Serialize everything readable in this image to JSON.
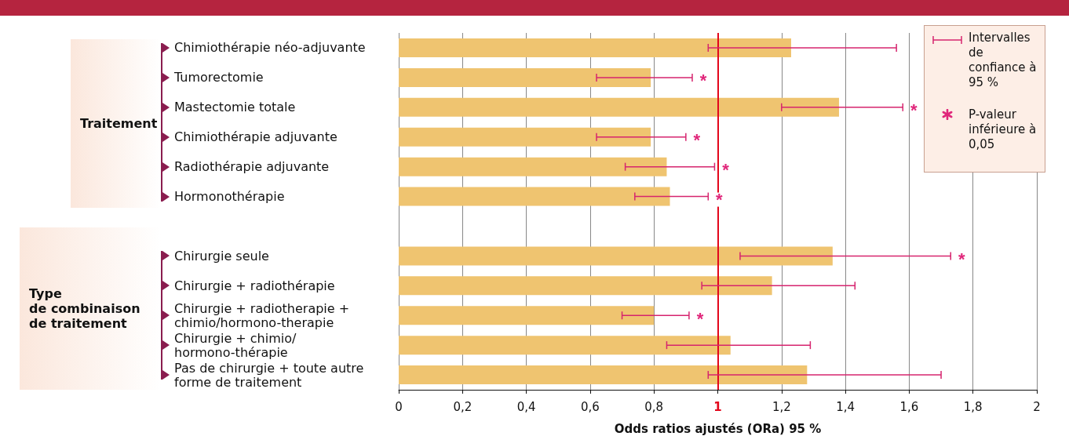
{
  "chart_data": {
    "type": "bar",
    "orientation": "horizontal",
    "xlabel": "Odds ratios ajustés (ORa) 95 %",
    "categories": [
      "Chimiothérapie néo-adjuvante",
      "Tumorectomie",
      "Mastectomie totale",
      "Chimiothérapie adjuvante",
      "Radiothérapie adjuvante",
      "Hormonothérapie",
      null,
      "Chirurgie seule",
      "Chirurgie + radiothérapie",
      "Chirurgie + radiotherapie +\nchimio/hormono-therapie",
      "Chirurgie + chimio/\nhormono-thérapie",
      "Pas de chirurgie + toute autre\nforme de traitement"
    ],
    "values": [
      1.23,
      0.79,
      1.38,
      0.79,
      0.84,
      0.85,
      null,
      1.36,
      1.17,
      0.8,
      1.04,
      1.28
    ],
    "errors": [
      [
        0.97,
        1.56
      ],
      [
        0.62,
        0.92
      ],
      [
        1.2,
        1.58
      ],
      [
        0.62,
        0.9
      ],
      [
        0.71,
        0.99
      ],
      [
        0.74,
        0.97
      ],
      null,
      [
        1.07,
        1.73
      ],
      [
        0.95,
        1.43
      ],
      [
        0.7,
        0.91
      ],
      [
        0.84,
        1.29
      ],
      [
        0.97,
        1.7
      ]
    ],
    "color": "#efc470",
    "xlim": [
      0,
      2
    ],
    "xticks": [
      0,
      {
        "value": 0.2,
        "label": "0,2"
      },
      {
        "value": 0.4,
        "label": "0,4"
      },
      {
        "value": 0.6,
        "label": "0,6"
      },
      {
        "value": 0.8,
        "label": "0,8"
      },
      1,
      {
        "value": 1.2,
        "label": "1,2"
      },
      {
        "value": 1.4,
        "label": "1,4"
      },
      {
        "value": 1.6,
        "label": "1,6"
      },
      {
        "value": 1.8,
        "label": "1,8"
      },
      2
    ],
    "grid": "x",
    "ref_lines": [
      {
        "axis": "x",
        "value": 1,
        "label": null,
        "color": "#e3061b"
      }
    ],
    "annotations": [
      "Traitement",
      "Type\nde combinaison\nde traitement",
      "Intervalles de confiance à 95 %",
      "P-valeur inférieure à 0,05",
      {
        "text": "*",
        "x": 0.92,
        "y": "Tumorectomie"
      },
      {
        "text": "*",
        "x": 1.58,
        "y": "Mastectomie totale"
      },
      {
        "text": "*",
        "x": 0.9,
        "y": "Chimiothérapie adjuvante"
      },
      {
        "text": "*",
        "x": 0.99,
        "y": "Radiothérapie adjuvante"
      },
      {
        "text": "*",
        "x": 0.97,
        "y": "Hormonothérapie"
      },
      {
        "text": "*",
        "x": 1.73,
        "y": "Chirurgie seule"
      },
      {
        "text": "*",
        "x": 0.91,
        "y": "Chirurgie + radiotherapie +\nchimio/hormono-therapie"
      }
    ]
  }
}
